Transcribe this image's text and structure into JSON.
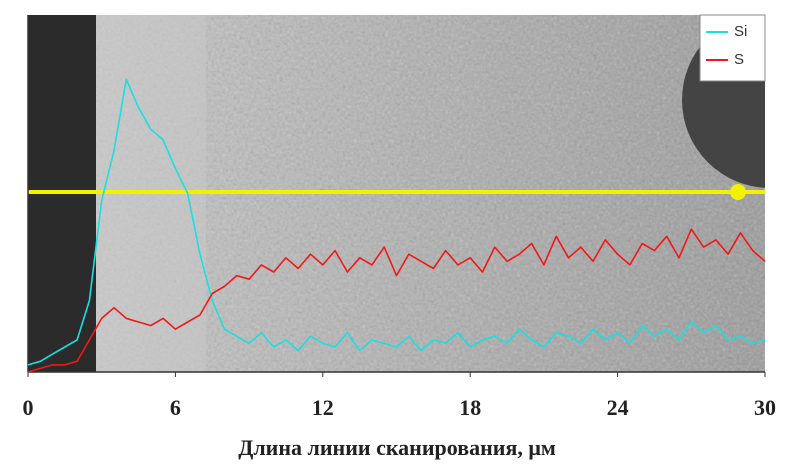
{
  "chart_data": {
    "type": "line",
    "x_label": "Длина линии сканирования, μм",
    "x": [
      0,
      0.5,
      1,
      1.5,
      2,
      2.5,
      3,
      3.5,
      4,
      4.5,
      5,
      5.5,
      6,
      6.5,
      7,
      7.5,
      8,
      8.5,
      9,
      9.5,
      10,
      10.5,
      11,
      11.5,
      12,
      12.5,
      13,
      13.5,
      14,
      14.5,
      15,
      15.5,
      16,
      16.5,
      17,
      17.5,
      18,
      18.5,
      19,
      19.5,
      20,
      20.5,
      21,
      21.5,
      22,
      22.5,
      23,
      23.5,
      24,
      24.5,
      25,
      25.5,
      26,
      26.5,
      27,
      27.5,
      28,
      28.5,
      29,
      29.5,
      30
    ],
    "series": [
      {
        "name": "Si",
        "color": "#19e0e0",
        "values": [
          2,
          3,
          5,
          7,
          9,
          20,
          48,
          62,
          82,
          74,
          68,
          65,
          57,
          50,
          33,
          20,
          12,
          10,
          8,
          11,
          7,
          9,
          6,
          10,
          8,
          7,
          11,
          6,
          9,
          8,
          7,
          10,
          6,
          9,
          8,
          11,
          7,
          9,
          10,
          8,
          12,
          9,
          7,
          11,
          10,
          8,
          12,
          9,
          11,
          8,
          13,
          10,
          12,
          9,
          14,
          11,
          13,
          9,
          10,
          8,
          9
        ]
      },
      {
        "name": "S",
        "color": "#f01818",
        "values": [
          0,
          1,
          2,
          2,
          3,
          9,
          15,
          18,
          15,
          14,
          13,
          15,
          12,
          14,
          16,
          22,
          24,
          27,
          26,
          30,
          28,
          32,
          29,
          33,
          30,
          34,
          28,
          32,
          30,
          35,
          27,
          33,
          31,
          29,
          34,
          30,
          32,
          28,
          35,
          31,
          33,
          36,
          30,
          38,
          32,
          35,
          31,
          37,
          33,
          30,
          36,
          34,
          38,
          32,
          40,
          35,
          37,
          33,
          39,
          34,
          31
        ]
      }
    ],
    "xlim": [
      0,
      30
    ],
    "xticks": [
      0,
      6,
      12,
      18,
      24,
      30
    ],
    "ylim": [
      0,
      100
    ],
    "legend": "top-right"
  }
}
